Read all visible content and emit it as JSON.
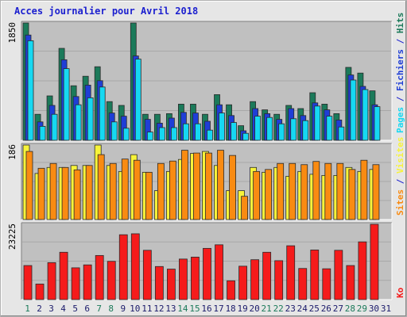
{
  "title": "Acces journalier pour Avril 2018",
  "colors": {
    "pages": "#16d8f2",
    "fichiers": "#1f3ed6",
    "hits": "#1b7a5a",
    "sites": "#f7f33a",
    "visites": "#f98b12",
    "ko": "#f51b1b",
    "weekend_day": "#1b7a5a",
    "weekday": "#1b1b6b",
    "separator": "#1b1fcf",
    "panel_bg": "#c0c0c0"
  },
  "legend": {
    "top": {
      "pages": "Pages",
      "sep1": " / ",
      "fichiers": "Fichiers",
      "sep2": " / ",
      "hits": "Hits"
    },
    "middle": {
      "sites": "Sites",
      "sep": " / ",
      "visites": "Visites"
    },
    "bottom": {
      "ko": "Ko"
    }
  },
  "chart_data": [
    {
      "type": "bar",
      "panel": "hits-fichiers-pages",
      "y_max_label": "1850",
      "ylim": [
        0,
        1850
      ],
      "x": [
        1,
        2,
        3,
        4,
        5,
        6,
        7,
        8,
        9,
        10,
        11,
        12,
        13,
        14,
        15,
        16,
        17,
        18,
        19,
        20,
        21,
        22,
        23,
        24,
        25,
        26,
        27,
        28,
        29,
        30,
        31
      ],
      "series": [
        {
          "name": "Hits",
          "values": [
            1850,
            410,
            700,
            1450,
            860,
            1010,
            1160,
            610,
            550,
            1850,
            410,
            410,
            420,
            570,
            570,
            410,
            720,
            560,
            230,
            610,
            480,
            410,
            550,
            500,
            750,
            570,
            420,
            1150,
            1060,
            780,
            0
          ]
        },
        {
          "name": "Fichiers",
          "values": [
            1660,
            290,
            550,
            1270,
            690,
            870,
            940,
            430,
            380,
            1330,
            330,
            270,
            350,
            440,
            430,
            300,
            560,
            390,
            150,
            500,
            420,
            330,
            500,
            390,
            590,
            480,
            320,
            1030,
            850,
            560,
            0
          ]
        },
        {
          "name": "Pages",
          "values": [
            1570,
            220,
            410,
            1130,
            560,
            670,
            840,
            290,
            190,
            1280,
            130,
            200,
            200,
            260,
            260,
            160,
            430,
            280,
            110,
            380,
            360,
            260,
            340,
            310,
            540,
            380,
            210,
            950,
            800,
            530,
            0
          ]
        }
      ]
    },
    {
      "type": "bar",
      "panel": "sites-visites",
      "y_max_label": "186",
      "ylim": [
        0,
        186
      ],
      "x": [
        1,
        2,
        3,
        4,
        5,
        6,
        7,
        8,
        9,
        10,
        11,
        12,
        13,
        14,
        15,
        16,
        17,
        18,
        19,
        20,
        21,
        22,
        23,
        24,
        25,
        26,
        27,
        28,
        29,
        30,
        31
      ],
      "series": [
        {
          "name": "Sites",
          "values": [
            186,
            115,
            130,
            130,
            135,
            135,
            186,
            135,
            120,
            162,
            118,
            72,
            120,
            150,
            165,
            170,
            135,
            72,
            72,
            130,
            118,
            130,
            108,
            120,
            113,
            110,
            110,
            130,
            120,
            125,
            0
          ]
        },
        {
          "name": "Visites",
          "values": [
            170,
            128,
            140,
            130,
            124,
            135,
            162,
            140,
            151,
            148,
            118,
            140,
            146,
            173,
            166,
            166,
            173,
            160,
            58,
            120,
            125,
            140,
            140,
            137,
            145,
            140,
            140,
            125,
            148,
            137,
            0
          ]
        }
      ]
    },
    {
      "type": "bar",
      "panel": "ko",
      "y_max_label": "23225",
      "ylim": [
        0,
        23225
      ],
      "x": [
        1,
        2,
        3,
        4,
        5,
        6,
        7,
        8,
        9,
        10,
        11,
        12,
        13,
        14,
        15,
        16,
        17,
        18,
        19,
        20,
        21,
        22,
        23,
        24,
        25,
        26,
        27,
        28,
        29,
        30,
        31
      ],
      "series": [
        {
          "name": "Ko",
          "values": [
            10500,
            4800,
            11400,
            14600,
            9800,
            10700,
            13600,
            11800,
            20000,
            20300,
            15200,
            10200,
            9400,
            12500,
            13100,
            15800,
            16900,
            5800,
            10300,
            12300,
            14600,
            12000,
            16600,
            9600,
            15300,
            9500,
            15200,
            10500,
            17800,
            23225,
            0
          ]
        }
      ]
    }
  ],
  "x_ticks": [
    {
      "label": "1",
      "weekend": true
    },
    {
      "label": "2",
      "weekend": false
    },
    {
      "label": "3",
      "weekend": false
    },
    {
      "label": "4",
      "weekend": false
    },
    {
      "label": "5",
      "weekend": false
    },
    {
      "label": "6",
      "weekend": false
    },
    {
      "label": "7",
      "weekend": true
    },
    {
      "label": "8",
      "weekend": true
    },
    {
      "label": "9",
      "weekend": false
    },
    {
      "label": "10",
      "weekend": false
    },
    {
      "label": "11",
      "weekend": false
    },
    {
      "label": "12",
      "weekend": false
    },
    {
      "label": "13",
      "weekend": false
    },
    {
      "label": "14",
      "weekend": true
    },
    {
      "label": "15",
      "weekend": true
    },
    {
      "label": "16",
      "weekend": false
    },
    {
      "label": "17",
      "weekend": false
    },
    {
      "label": "18",
      "weekend": false
    },
    {
      "label": "19",
      "weekend": false
    },
    {
      "label": "20",
      "weekend": false
    },
    {
      "label": "21",
      "weekend": true
    },
    {
      "label": "22",
      "weekend": true
    },
    {
      "label": "23",
      "weekend": false
    },
    {
      "label": "24",
      "weekend": false
    },
    {
      "label": "25",
      "weekend": false
    },
    {
      "label": "26",
      "weekend": false
    },
    {
      "label": "27",
      "weekend": false
    },
    {
      "label": "28",
      "weekend": true
    },
    {
      "label": "29",
      "weekend": true
    },
    {
      "label": "30",
      "weekend": false
    },
    {
      "label": "31",
      "weekend": false
    }
  ]
}
